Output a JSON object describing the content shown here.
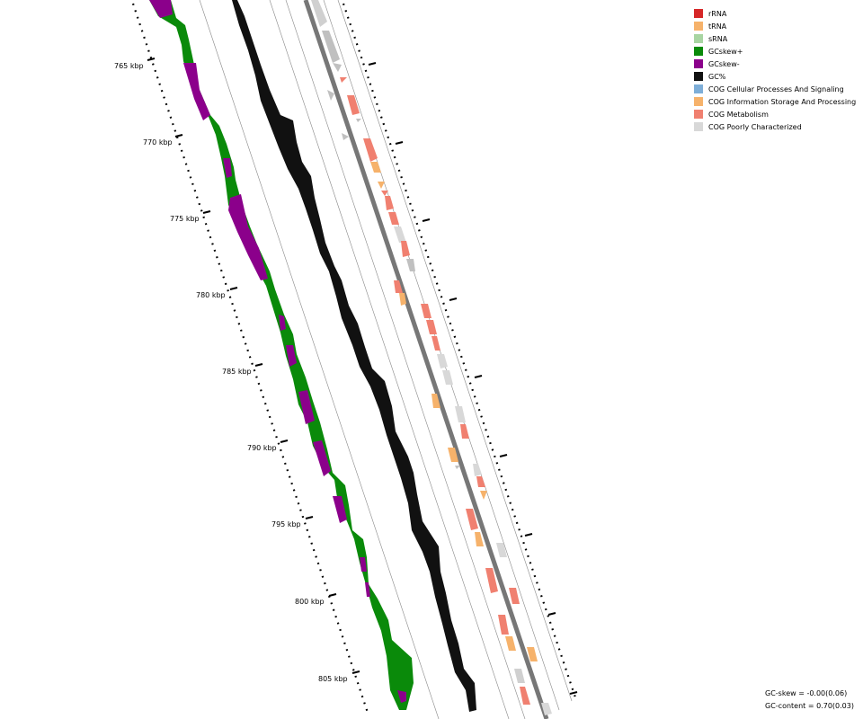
{
  "legend": {
    "items": [
      {
        "label": "rRNA",
        "color": "#d62728"
      },
      {
        "label": "tRNA",
        "color": "#f6b26b"
      },
      {
        "label": "sRNA",
        "color": "#a8d5a2"
      },
      {
        "label": "GCskew+",
        "color": "#0a8a0a"
      },
      {
        "label": "GCskew-",
        "color": "#8b008b"
      },
      {
        "label": "GC%",
        "color": "#111111"
      },
      {
        "label": "COG Cellular Processes And Signaling",
        "color": "#7eaed8"
      },
      {
        "label": "COG Information Storage And Processing",
        "color": "#f6b26b"
      },
      {
        "label": "COG Metabolism",
        "color": "#f08070"
      },
      {
        "label": "COG Poorly Characterized",
        "color": "#d8d8d8"
      }
    ]
  },
  "ticks": [
    {
      "label": "765 kbp"
    },
    {
      "label": "770 kbp"
    },
    {
      "label": "775 kbp"
    },
    {
      "label": "780 kbp"
    },
    {
      "label": "785 kbp"
    },
    {
      "label": "790 kbp"
    },
    {
      "label": "795 kbp"
    },
    {
      "label": "800 kbp"
    },
    {
      "label": "805 kbp"
    }
  ],
  "stats": {
    "gc_skew": "GC-skew = -0.00(0.06)",
    "gc_content": "GC-content = 0.70(0.03)"
  }
}
